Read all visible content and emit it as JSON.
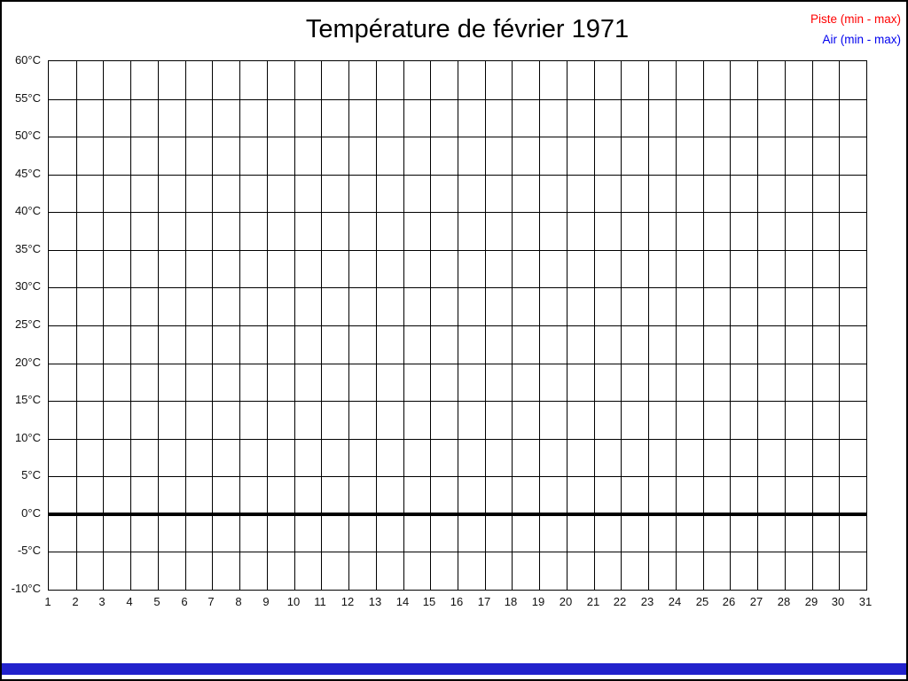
{
  "header": {
    "title": "Température de février 1971"
  },
  "legend": {
    "position": "top-right",
    "entries": [
      {
        "label": "Piste (min - max)",
        "color": "#ff0000"
      },
      {
        "label": "Air (min - max)",
        "color": "#0000ee"
      }
    ]
  },
  "chart_data": {
    "type": "line",
    "title": "Température de février 1971",
    "grid": true,
    "legend_position": "top-right",
    "x_axis": {
      "label": "",
      "ticks": [
        1,
        2,
        3,
        4,
        5,
        6,
        7,
        8,
        9,
        10,
        11,
        12,
        13,
        14,
        15,
        16,
        17,
        18,
        19,
        20,
        21,
        22,
        23,
        24,
        25,
        26,
        27,
        28,
        29,
        30,
        31
      ],
      "xlim": [
        1,
        31
      ]
    },
    "y_axis": {
      "label": "",
      "unit": "°C",
      "min": -10,
      "max": 60,
      "step": 5,
      "tick_labels": [
        "60°C",
        "55°C",
        "50°C",
        "45°C",
        "40°C",
        "35°C",
        "30°C",
        "25°C",
        "20°C",
        "15°C",
        "10°C",
        "5°C",
        "0°C",
        "-5°C",
        "-10°C"
      ]
    },
    "emphasized_gridline_value": 0,
    "series": [
      {
        "name": "Piste (min - max)",
        "color": "#ff0000",
        "values": []
      },
      {
        "name": "Air (min - max)",
        "color": "#0000ee",
        "values": []
      }
    ]
  },
  "footer": {
    "bar_color": "#2222cc"
  }
}
